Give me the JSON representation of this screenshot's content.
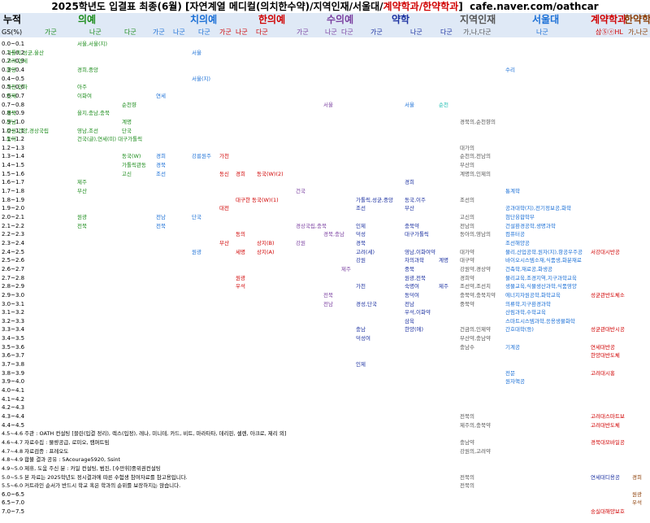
{
  "title": {
    "main": "2025학년도 입결표 최종(6월) [자연계열 메디컬(의치한수약)/지역인재/서울대/",
    "red_part": "계약학과/한약학과",
    "close": "]",
    "url": "cafe.naver.com/oathcar"
  },
  "header": {
    "rank": "누적",
    "gs": "GS(%)",
    "groups": [
      {
        "key": "med",
        "label": "의예",
        "color": "#1b8c1b"
      },
      {
        "key": "dent",
        "label": "치의예",
        "color": "#1a6fd6"
      },
      {
        "key": "oriental",
        "label": "한의예",
        "color": "#d00000"
      },
      {
        "key": "vet",
        "label": "수의예",
        "color": "#7a3fa0"
      },
      {
        "key": "pharm",
        "label": "약학",
        "color": "#1a2fa0"
      },
      {
        "key": "regional",
        "label": "지역인재",
        "color": "#555555"
      },
      {
        "key": "snu",
        "label": "서울대",
        "color": "#1a6fd6"
      },
      {
        "key": "contract",
        "label": "계약학과",
        "color": "#d00000"
      },
      {
        "key": "herbpharm",
        "label": "한약학",
        "color": "#8a3a00"
      }
    ],
    "subs": [
      {
        "label": "가군",
        "color": "#1b8c1b"
      },
      {
        "label": "나군",
        "color": "#1b8c1b"
      },
      {
        "label": "다군",
        "color": "#1b8c1b"
      },
      {
        "label": "가군",
        "color": "#1a6fd6"
      },
      {
        "label": "나군",
        "color": "#1a6fd6"
      },
      {
        "label": "다군",
        "color": "#1a6fd6"
      },
      {
        "label": "가군",
        "color": "#d00000"
      },
      {
        "label": "나군",
        "color": "#d00000"
      },
      {
        "label": "다군",
        "color": "#d00000"
      },
      {
        "label": "가군",
        "color": "#7a3fa0"
      },
      {
        "label": "나군",
        "color": "#7a3fa0"
      },
      {
        "label": "다군",
        "color": "#7a3fa0"
      },
      {
        "label": "가군",
        "color": "#1a2fa0"
      },
      {
        "label": "나군",
        "color": "#1a2fa0"
      },
      {
        "label": "다군",
        "color": "#1a2fa0"
      },
      {
        "label": "가,나,다군",
        "color": "#555555"
      },
      {
        "label": "나군",
        "color": "#1a6fd6"
      },
      {
        "label": "삼ⓈⓔHL",
        "color": "#d00000"
      },
      {
        "label": "가,나군",
        "color": "#8a3a00"
      }
    ]
  },
  "rows": [
    {
      "k": "0.0~0.1",
      "c": [
        {
          "col": 1,
          "t": "서울,서울(지)",
          "clr": "#1b8c1b"
        }
      ]
    },
    {
      "k": "0.1~0.2",
      "c": [
        {
          "col": 0,
          "t": "가톨릭,성균,울산",
          "clr": "#1b8c1b"
        },
        {
          "col": 4,
          "t": "서울",
          "clr": "#1a6fd6"
        }
      ]
    },
    {
      "k": "0.2~0.3",
      "c": [
        {
          "col": 0,
          "t": "고려,연세",
          "clr": "#1b8c1b"
        }
      ]
    },
    {
      "k": "0.3~0.4",
      "c": [
        {
          "col": 0,
          "t": "한양",
          "clr": "#1b8c1b"
        },
        {
          "col": 1,
          "t": "경희,중앙",
          "clr": "#1b8c1b"
        },
        {
          "col": 16,
          "t": "수리",
          "clr": "#1a6fd6"
        }
      ]
    },
    {
      "k": "0.4~0.5",
      "c": [
        {
          "col": 4,
          "t": "서울(지)",
          "clr": "#1a6fd6"
        }
      ]
    },
    {
      "k": "0.5~0.6",
      "c": [
        {
          "col": 0,
          "t": "가천,인하",
          "clr": "#1b8c1b"
        },
        {
          "col": 1,
          "t": "아주",
          "clr": "#1b8c1b"
        }
      ]
    },
    {
      "k": "0.6~0.7",
      "c": [
        {
          "col": 0,
          "t": "인제",
          "clr": "#1b8c1b"
        },
        {
          "col": 1,
          "t": "이화여",
          "clr": "#1b8c1b"
        },
        {
          "col": 3,
          "t": "연세",
          "clr": "#1a6fd6"
        }
      ]
    },
    {
      "k": "0.7~0.8",
      "c": [
        {
          "col": 2,
          "t": "순천향",
          "clr": "#1b8c1b"
        },
        {
          "col": 10,
          "t": "서울",
          "clr": "#7a3fa0"
        },
        {
          "col": 13,
          "t": "서울",
          "clr": "#1a6fd6"
        },
        {
          "col": 14,
          "t": "순천",
          "clr": "#1abcb0"
        }
      ]
    },
    {
      "k": "0.8~0.9",
      "c": [
        {
          "col": 0,
          "t": "경북",
          "clr": "#1b8c1b"
        },
        {
          "col": 1,
          "t": "을지,충남,충북",
          "clr": "#1b8c1b"
        }
      ]
    },
    {
      "k": "0.9~1.0",
      "c": [
        {
          "col": 0,
          "t": "전남",
          "clr": "#1b8c1b"
        },
        {
          "col": 2,
          "t": "계명",
          "clr": "#1b8c1b"
        },
        {
          "col": 15,
          "t": "경북의,순천향의",
          "clr": "#555555"
        }
      ]
    },
    {
      "k": "1.0~1.1",
      "c": [
        {
          "col": 0,
          "t": "강원,건양,경상국립",
          "clr": "#1b8c1b"
        },
        {
          "col": 1,
          "t": "영남,조선",
          "clr": "#1b8c1b"
        },
        {
          "col": 2,
          "t": "단국",
          "clr": "#1b8c1b"
        }
      ]
    },
    {
      "k": "1.1~1.2",
      "c": [
        {
          "col": 0,
          "t": "동아",
          "clr": "#1b8c1b"
        },
        {
          "col": 1,
          "t": "건국(글),연세(미) 대구가톨릭",
          "clr": "#1b8c1b"
        }
      ]
    },
    {
      "k": "1.2~1.3",
      "c": [
        {
          "col": 15,
          "t": "대가의",
          "clr": "#555555"
        }
      ]
    },
    {
      "k": "1.3~1.4",
      "c": [
        {
          "col": 2,
          "t": "동국(W)",
          "clr": "#1b8c1b"
        },
        {
          "col": 3,
          "t": "경희",
          "clr": "#1a6fd6"
        },
        {
          "col": 4,
          "t": "강릉원주",
          "clr": "#1a6fd6"
        },
        {
          "col": 6,
          "t": "가천",
          "clr": "#d00000"
        },
        {
          "col": 15,
          "t": "순천의,전남의",
          "clr": "#555555"
        }
      ]
    },
    {
      "k": "1.4~1.5",
      "c": [
        {
          "col": 2,
          "t": "가톨릭관동",
          "clr": "#1b8c1b"
        },
        {
          "col": 3,
          "t": "경북",
          "clr": "#1a6fd6"
        },
        {
          "col": 15,
          "t": "부산의",
          "clr": "#555555"
        }
      ]
    },
    {
      "k": "1.5~1.6",
      "c": [
        {
          "col": 2,
          "t": "고신",
          "clr": "#1b8c1b"
        },
        {
          "col": 3,
          "t": "조선",
          "clr": "#1a6fd6"
        },
        {
          "col": 6,
          "t": "동신",
          "clr": "#d00000"
        },
        {
          "col": 7,
          "t": "경희",
          "clr": "#d00000"
        },
        {
          "col": 8,
          "t": "동국(W)(2)",
          "clr": "#d00000"
        },
        {
          "col": 15,
          "t": "계명의,인제의",
          "clr": "#555555"
        }
      ]
    },
    {
      "k": "1.6~1.7",
      "c": [
        {
          "col": 1,
          "t": "제주",
          "clr": "#1b8c1b"
        },
        {
          "col": 13,
          "t": "경희",
          "clr": "#1a2fa0"
        }
      ]
    },
    {
      "k": "1.7~1.8",
      "c": [
        {
          "col": 1,
          "t": "부산",
          "clr": "#1b8c1b"
        },
        {
          "col": 9,
          "t": "건국",
          "clr": "#7a3fa0"
        },
        {
          "col": 16,
          "t": "통계학",
          "clr": "#1a6fd6"
        }
      ]
    },
    {
      "k": "1.8~1.9",
      "c": [
        {
          "col": 7,
          "t": "대구한 동국(W)(1)",
          "clr": "#d00000"
        },
        {
          "col": 12,
          "t": "가톨릭,성균,중앙",
          "clr": "#1a2fa0"
        },
        {
          "col": 13,
          "t": "동국,이주",
          "clr": "#1a2fa0"
        },
        {
          "col": 15,
          "t": "조선의",
          "clr": "#555555"
        }
      ]
    },
    {
      "k": "1.9~2.0",
      "c": [
        {
          "col": 6,
          "t": "대전",
          "clr": "#d00000"
        },
        {
          "col": 12,
          "t": "조선",
          "clr": "#1a2fa0"
        },
        {
          "col": 13,
          "t": "부산",
          "clr": "#1a2fa0"
        },
        {
          "col": 16,
          "t": "공과대학(지),전기정보공,화학",
          "clr": "#1a6fd6"
        }
      ]
    },
    {
      "k": "2.0~2.1",
      "c": [
        {
          "col": 1,
          "t": "원광",
          "clr": "#1b8c1b"
        },
        {
          "col": 3,
          "t": "전남",
          "clr": "#1a6fd6"
        },
        {
          "col": 4,
          "t": "단국",
          "clr": "#1a6fd6"
        },
        {
          "col": 15,
          "t": "고신의",
          "clr": "#555555"
        },
        {
          "col": 16,
          "t": "첨단융합학부",
          "clr": "#1a6fd6"
        }
      ]
    },
    {
      "k": "2.1~2.2",
      "c": [
        {
          "col": 1,
          "t": "전북",
          "clr": "#1b8c1b"
        },
        {
          "col": 3,
          "t": "전북",
          "clr": "#1a6fd6"
        },
        {
          "col": 9,
          "t": "경상국립,충북",
          "clr": "#7a3fa0"
        },
        {
          "col": 12,
          "t": "인제",
          "clr": "#1a2fa0"
        },
        {
          "col": 13,
          "t": "충북약",
          "clr": "#1a2fa0"
        },
        {
          "col": 15,
          "t": "전남의",
          "clr": "#555555"
        },
        {
          "col": 16,
          "t": "건설환경공학,생명과학",
          "clr": "#1a6fd6"
        }
      ]
    },
    {
      "k": "2.2~2.3",
      "c": [
        {
          "col": 7,
          "t": "동의",
          "clr": "#d00000"
        },
        {
          "col": 10,
          "t": "경북,충남",
          "clr": "#7a3fa0"
        },
        {
          "col": 12,
          "t": "덕성",
          "clr": "#1a2fa0"
        },
        {
          "col": 13,
          "t": "대구가톨릭",
          "clr": "#1a2fa0"
        },
        {
          "col": 15,
          "t": "동아의,영남의",
          "clr": "#555555"
        },
        {
          "col": 16,
          "t": "컴퓨터공",
          "clr": "#1a6fd6"
        }
      ]
    },
    {
      "k": "2.3~2.4",
      "c": [
        {
          "col": 6,
          "t": "부산",
          "clr": "#d00000"
        },
        {
          "col": 8,
          "t": "상지(B)",
          "clr": "#d00000"
        },
        {
          "col": 9,
          "t": "강원",
          "clr": "#7a3fa0"
        },
        {
          "col": 12,
          "t": "경북",
          "clr": "#1a2fa0"
        },
        {
          "col": 16,
          "t": "조선해양공",
          "clr": "#1a6fd6"
        }
      ]
    },
    {
      "k": "2.4~2.5",
      "c": [
        {
          "col": 4,
          "t": "원광",
          "clr": "#1a6fd6"
        },
        {
          "col": 7,
          "t": "세명",
          "clr": "#d00000"
        },
        {
          "col": 8,
          "t": "상지(A)",
          "clr": "#d00000"
        },
        {
          "col": 12,
          "t": "고려(세)",
          "clr": "#1a2fa0"
        },
        {
          "col": 13,
          "t": "영남,이화여약",
          "clr": "#1a2fa0"
        },
        {
          "col": 15,
          "t": "대가약",
          "clr": "#555555"
        },
        {
          "col": 16,
          "t": "물리,산업공학,원자(지),항공우주공",
          "clr": "#1a6fd6"
        },
        {
          "col": 17,
          "t": "서강대시반공",
          "clr": "#d00000"
        }
      ]
    },
    {
      "k": "2.5~2.6",
      "c": [
        {
          "col": 12,
          "t": "강원",
          "clr": "#1a2fa0"
        },
        {
          "col": 13,
          "t": "차의과학",
          "clr": "#1a2fa0"
        },
        {
          "col": 14,
          "t": "계명",
          "clr": "#1a2fa0"
        },
        {
          "col": 15,
          "t": "대구약",
          "clr": "#555555"
        },
        {
          "col": 16,
          "t": "바이오시스템소재,식품생,화분재료",
          "clr": "#1a6fd6"
        }
      ]
    },
    {
      "k": "2.6~2.7",
      "c": [
        {
          "col": 11,
          "t": "제주",
          "clr": "#7a3fa0"
        },
        {
          "col": 13,
          "t": "중북",
          "clr": "#1a2fa0"
        },
        {
          "col": 15,
          "t": "강원약,경상약",
          "clr": "#555555"
        },
        {
          "col": 16,
          "t": "건축학,재료공,화생공",
          "clr": "#1a6fd6"
        }
      ]
    },
    {
      "k": "2.7~2.8",
      "c": [
        {
          "col": 7,
          "t": "원광",
          "clr": "#d00000"
        },
        {
          "col": 13,
          "t": "원광,전북",
          "clr": "#1a2fa0"
        },
        {
          "col": 15,
          "t": "경희약",
          "clr": "#555555"
        },
        {
          "col": 16,
          "t": "물리교육,조경지역,지구과학교육",
          "clr": "#1a6fd6"
        }
      ]
    },
    {
      "k": "2.8~2.9",
      "c": [
        {
          "col": 7,
          "t": "우석",
          "clr": "#d00000"
        },
        {
          "col": 12,
          "t": "가천",
          "clr": "#1a2fa0"
        },
        {
          "col": 13,
          "t": "숙명여",
          "clr": "#1a2fa0"
        },
        {
          "col": 14,
          "t": "제주",
          "clr": "#1a2fa0"
        },
        {
          "col": 15,
          "t": "조선약,조선치",
          "clr": "#555555"
        },
        {
          "col": 16,
          "t": "생물교육,식물생산과학,식품영양",
          "clr": "#1a6fd6"
        }
      ]
    },
    {
      "k": "2.9~3.0",
      "c": [
        {
          "col": 10,
          "t": "전북",
          "clr": "#7a3fa0"
        },
        {
          "col": 13,
          "t": "동덕여",
          "clr": "#1a2fa0"
        },
        {
          "col": 15,
          "t": "충북약,충북치약",
          "clr": "#555555"
        },
        {
          "col": 16,
          "t": "에너지자원공학,화학교육",
          "clr": "#1a6fd6"
        },
        {
          "col": 17,
          "t": "성균관반도체소",
          "clr": "#d00000"
        }
      ]
    },
    {
      "k": "3.0~3.1",
      "c": [
        {
          "col": 10,
          "t": "전남",
          "clr": "#7a3fa0"
        },
        {
          "col": 12,
          "t": "경성,단국",
          "clr": "#1a2fa0"
        },
        {
          "col": 13,
          "t": "전남",
          "clr": "#1a2fa0"
        },
        {
          "col": 15,
          "t": "중북약",
          "clr": "#555555"
        },
        {
          "col": 16,
          "t": "의류학,지구환경과학",
          "clr": "#1a6fd6"
        }
      ]
    },
    {
      "k": "3.1~3.2",
      "c": [
        {
          "col": 13,
          "t": "우석,이화약",
          "clr": "#1a2fa0"
        },
        {
          "col": 16,
          "t": "산림과학,수학교육",
          "clr": "#1a6fd6"
        }
      ]
    },
    {
      "k": "3.2~3.3",
      "c": [
        {
          "col": 13,
          "t": "삼육",
          "clr": "#1a2fa0"
        },
        {
          "col": 16,
          "t": "스마트시스템과학,응용생물화학",
          "clr": "#1a6fd6"
        }
      ]
    },
    {
      "k": "3.3~3.4",
      "c": [
        {
          "col": 12,
          "t": "충남",
          "clr": "#1a2fa0"
        },
        {
          "col": 13,
          "t": "한양(에)",
          "clr": "#1a2fa0"
        },
        {
          "col": 15,
          "t": "건금의,인제약",
          "clr": "#555555"
        },
        {
          "col": 16,
          "t": "간호대학(등)",
          "clr": "#1a6fd6"
        },
        {
          "col": 17,
          "t": "성균관대반시공",
          "clr": "#d00000"
        }
      ]
    },
    {
      "k": "3.4~3.5",
      "c": [
        {
          "col": 12,
          "t": "덕성여",
          "clr": "#1a2fa0"
        },
        {
          "col": 15,
          "t": "부산약,충남약",
          "clr": "#555555"
        }
      ]
    },
    {
      "k": "3.5~3.6",
      "c": [
        {
          "col": 15,
          "t": "충남수",
          "clr": "#555555"
        },
        {
          "col": 16,
          "t": "기계공",
          "clr": "#1a6fd6"
        },
        {
          "col": 17,
          "t": "연세대반공",
          "clr": "#d00000"
        }
      ]
    },
    {
      "k": "3.6~3.7",
      "c": [
        {
          "col": 17,
          "t": "한양대반도체",
          "clr": "#d00000"
        }
      ]
    },
    {
      "k": "3.7~3.8",
      "c": [
        {
          "col": 12,
          "t": "인제",
          "clr": "#1a2fa0"
        }
      ]
    },
    {
      "k": "3.8~3.9",
      "c": [
        {
          "col": 16,
          "t": "전문",
          "clr": "#1a6fd6"
        },
        {
          "col": 17,
          "t": "고려대시홍",
          "clr": "#d00000"
        }
      ]
    },
    {
      "k": "3.9~4.0",
      "c": [
        {
          "col": 16,
          "t": "원자핵공",
          "clr": "#1a6fd6"
        }
      ]
    },
    {
      "k": "4.0~4.1",
      "c": []
    },
    {
      "k": "4.1~4.2",
      "c": []
    },
    {
      "k": "4.2~4.3",
      "c": []
    },
    {
      "k": "4.3~4.4",
      "c": [
        {
          "col": 15,
          "t": "전북의",
          "clr": "#555555"
        },
        {
          "col": 17,
          "t": "고려대스마트보",
          "clr": "#d00000"
        }
      ]
    },
    {
      "k": "4.4~4.5",
      "c": [
        {
          "col": 15,
          "t": "제주의,충북약",
          "clr": "#555555"
        },
        {
          "col": 17,
          "t": "고려대반도체",
          "clr": "#d00000"
        }
      ]
    },
    {
      "k": "4.5~4.6",
      "n": "주관 : OATH 컨설팅 [블린(입결 정리), 렉스(입정), 레나, 미니테, 카드, 비트, 마라타타, 데리핀, 셀렌, 아크로, 제리 외]",
      "c": []
    },
    {
      "k": "4.6~4.7",
      "n": "자료수집 : 물량공급, 로미오, 캠퍼트밈",
      "c": [
        {
          "col": 15,
          "t": "충남약",
          "clr": "#555555"
        },
        {
          "col": 17,
          "t": "경북대모바일공",
          "clr": "#d00000"
        }
      ]
    },
    {
      "k": "4.7~4.8",
      "n": "자료검증 : 프레오도",
      "c": [
        {
          "col": 15,
          "t": "강원의,고려약",
          "clr": "#555555"
        }
      ]
    },
    {
      "k": "4.8~4.9",
      "n": "합불 결과 공유 : 5Acourage5920, Ssint",
      "c": []
    },
    {
      "k": "4.9~5.0",
      "n": "제휴, 도움 주신 분 : 카일 컨설팅, 범진, [수만휘]중위권컨설팅",
      "c": []
    },
    {
      "k": "5.0~5.5",
      "n": "본 자료는 2025학년도 정시결과에 따른 수험생 참여자료를 참고용입니다.",
      "c": [
        {
          "col": 15,
          "t": "전북의",
          "clr": "#555555"
        },
        {
          "col": 17,
          "t": "연세대디용공",
          "clr": "#1a2fa0"
        },
        {
          "col": 18,
          "t": "경희",
          "clr": "#8a3a00"
        }
      ]
    },
    {
      "k": "5.5~6.0",
      "n": "커트라인 순서가 반드시 학교 혹은 학과의 순위를 보장하지는 않습니다.",
      "c": [
        {
          "col": 15,
          "t": "전북의",
          "clr": "#555555"
        }
      ]
    },
    {
      "k": "6.0~6.5",
      "c": [
        {
          "col": 18,
          "t": "원광",
          "clr": "#8a3a00"
        }
      ]
    },
    {
      "k": "6.5~7.0",
      "c": [
        {
          "col": 18,
          "t": "우석",
          "clr": "#8a3a00"
        }
      ]
    },
    {
      "k": "7.0~7.5",
      "c": [
        {
          "col": 17,
          "t": "숭실대해양보호",
          "clr": "#d00000"
        }
      ]
    }
  ]
}
